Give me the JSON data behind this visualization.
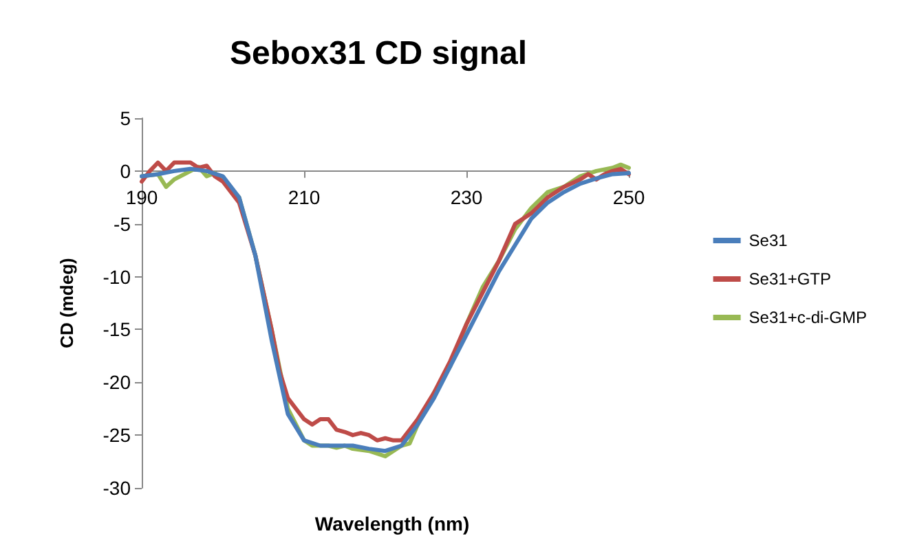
{
  "chart_data": {
    "type": "line",
    "title": "Sebox31 CD signal",
    "xlabel": "Wavelength (nm)",
    "ylabel": "CD (mdeg)",
    "xlim": [
      190,
      250
    ],
    "xticks": [
      190,
      210,
      230,
      250
    ],
    "ylim": [
      -30,
      5
    ],
    "yticks": [
      -30,
      -25,
      -20,
      -15,
      -10,
      -5,
      0,
      5
    ],
    "grid": false,
    "legend": "right",
    "marker": "none",
    "line_style": "solid",
    "series": [
      {
        "name": "Se31",
        "color": "#4a7ebb",
        "x": [
          190,
          192,
          194,
          196,
          198,
          200,
          202,
          204,
          206,
          208,
          210,
          212,
          214,
          216,
          218,
          220,
          222,
          224,
          226,
          228,
          230,
          232,
          234,
          236,
          238,
          240,
          242,
          244,
          246,
          248,
          250
        ],
        "values": [
          -0.5,
          -0.3,
          0,
          0.2,
          0,
          -0.5,
          -2.5,
          -8,
          -16,
          -23,
          -25.5,
          -26,
          -26,
          -26,
          -26.3,
          -26.5,
          -26,
          -24,
          -21.5,
          -18.5,
          -15.5,
          -12.5,
          -9.5,
          -7,
          -4.5,
          -3,
          -2,
          -1.2,
          -0.7,
          -0.3,
          -0.2
        ]
      },
      {
        "name": "Se31+GTP",
        "color": "#be4b48",
        "x": [
          190,
          191,
          192,
          193,
          194,
          195,
          196,
          197,
          198,
          199,
          200,
          202,
          204,
          206,
          207,
          208,
          209,
          210,
          211,
          212,
          213,
          214,
          215,
          216,
          217,
          218,
          219,
          220,
          221,
          222,
          223,
          224,
          226,
          228,
          230,
          232,
          234,
          236,
          238,
          240,
          242,
          244,
          245,
          246,
          247,
          248,
          249,
          250
        ],
        "values": [
          -1,
          0,
          0.8,
          0,
          0.8,
          0.8,
          0.8,
          0.3,
          0.5,
          -0.5,
          -1,
          -3,
          -8,
          -15,
          -19,
          -21.5,
          -22.5,
          -23.5,
          -24,
          -23.5,
          -23.5,
          -24.5,
          -24.7,
          -25,
          -24.8,
          -25,
          -25.5,
          -25.3,
          -25.5,
          -25.5,
          -24.5,
          -23.5,
          -21,
          -18,
          -14.5,
          -11.5,
          -8.5,
          -5,
          -4,
          -2.5,
          -1.5,
          -0.8,
          -0.3,
          -0.8,
          -0.3,
          0,
          0.2,
          -0.3
        ]
      },
      {
        "name": "Se31+c-di-GMP",
        "color": "#98b954",
        "x": [
          190,
          192,
          193,
          194,
          196,
          197,
          198,
          199,
          200,
          202,
          204,
          206,
          208,
          210,
          211,
          212,
          213,
          214,
          215,
          216,
          218,
          220,
          221,
          222,
          223,
          224,
          226,
          228,
          230,
          232,
          234,
          236,
          238,
          240,
          242,
          244,
          246,
          248,
          249,
          250
        ],
        "values": [
          -0.5,
          -0.3,
          -1.5,
          -0.8,
          0,
          0.4,
          -0.5,
          -0.2,
          -0.8,
          -2.5,
          -8,
          -15,
          -22.5,
          -25.5,
          -26,
          -26,
          -26,
          -26.2,
          -26,
          -26.3,
          -26.5,
          -27,
          -26.5,
          -26,
          -25.8,
          -24,
          -21,
          -18.5,
          -14.5,
          -11,
          -8.5,
          -5.5,
          -3.5,
          -2,
          -1.5,
          -0.5,
          0,
          0.3,
          0.6,
          0.3
        ]
      }
    ]
  }
}
